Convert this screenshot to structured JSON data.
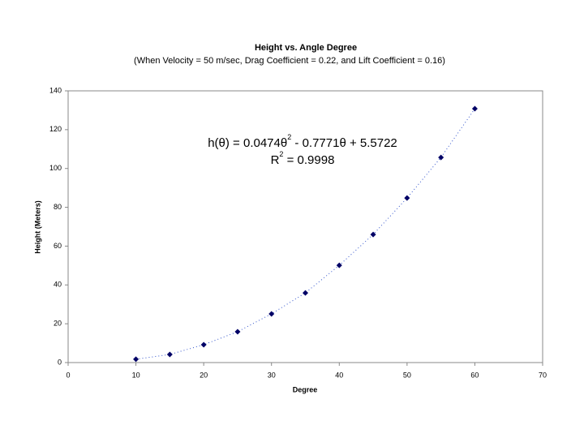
{
  "chart_data": {
    "type": "scatter",
    "title": "Height vs. Angle Degree",
    "subtitle": "(When Velocity = 50 m/sec, Drag Coefficient = 0.22, and Lift Coefficient = 0.16)",
    "xlabel": "Degree",
    "ylabel": "Height (Meters)",
    "annotations": [
      [
        "h(θ) = 0.0474θ",
        "2",
        " - 0.7771θ + 5.5722"
      ],
      [
        "R",
        "2",
        " = 0.9998"
      ]
    ],
    "x": [
      10,
      15,
      20,
      25,
      30,
      35,
      40,
      45,
      50,
      55,
      60
    ],
    "series": [
      {
        "color": "#000066",
        "values": [
          1.7,
          4.2,
          9.2,
          15.9,
          25.1,
          35.9,
          50.1,
          66,
          84.8,
          105.7,
          130.8
        ]
      }
    ],
    "trendline_color": "#3355cc",
    "xlim": [
      0,
      70
    ],
    "xticks": [
      0,
      10,
      20,
      30,
      40,
      50,
      60,
      70
    ],
    "ylim": [
      0,
      140
    ],
    "yticks": [
      0,
      20,
      40,
      60,
      80,
      100,
      120,
      140
    ],
    "grid": false
  }
}
